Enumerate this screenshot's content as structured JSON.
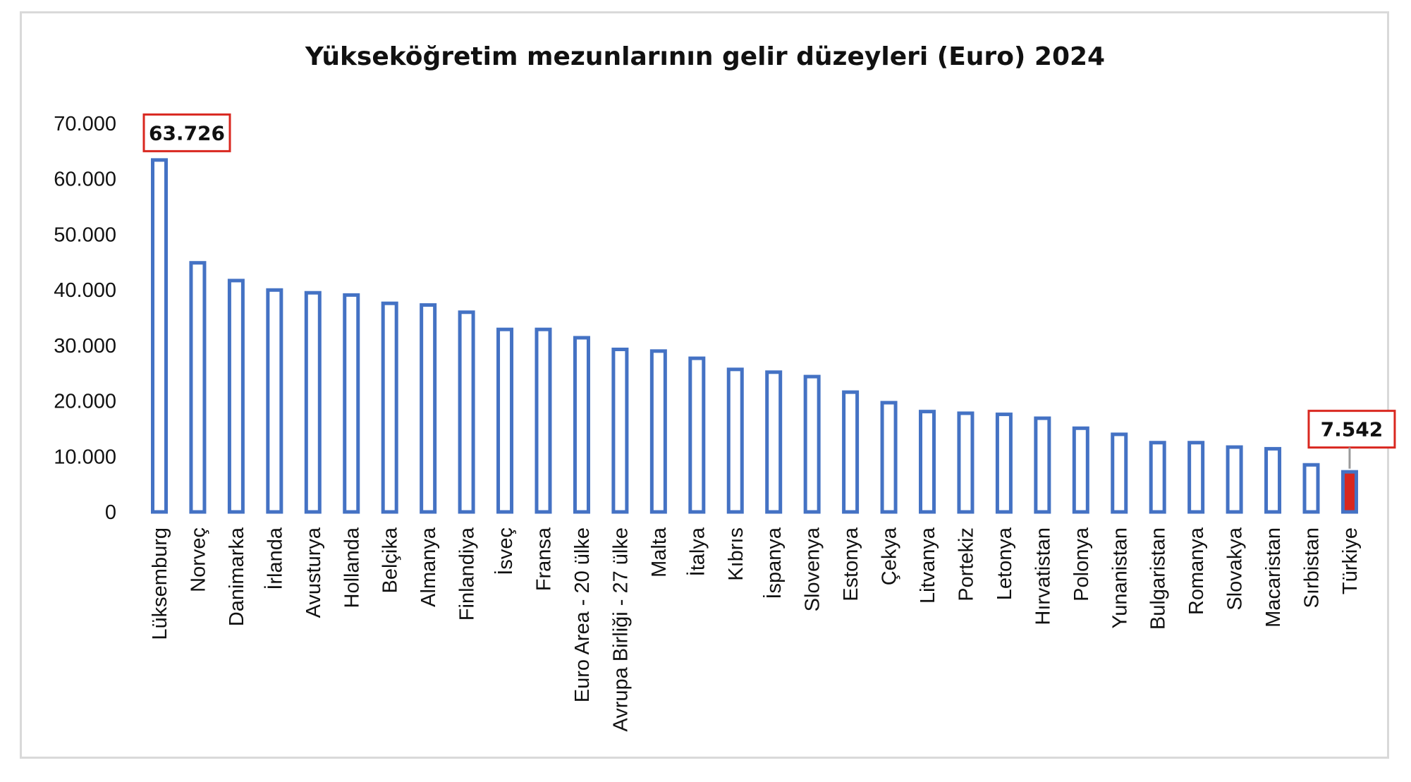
{
  "chart_data": {
    "type": "bar",
    "title": "Yükseköğretim mezunlarının gelir düzeyleri (Euro) 2024",
    "xlabel": "",
    "ylabel": "",
    "ylim": [
      0,
      70000
    ],
    "yticks": [
      0,
      10000,
      20000,
      30000,
      40000,
      50000,
      60000,
      70000
    ],
    "ytick_labels": [
      "0",
      "10.000",
      "20.000",
      "30.000",
      "40.000",
      "50.000",
      "60.000",
      "70.000"
    ],
    "grid": false,
    "legend": "none",
    "categories": [
      "Lüksemburg",
      "Norveç",
      "Danimarka",
      "İrlanda",
      "Avusturya",
      "Hollanda",
      "Belçika",
      "Almanya",
      "Finlandiya",
      "İsveç",
      "Fransa",
      "Euro Area - 20 ülke",
      "Avrupa Birliği - 27 ülke",
      "Malta",
      "İtalya",
      "Kıbrıs",
      "İspanya",
      "Slovenya",
      "Estonya",
      "Çekya",
      "Litvanya",
      "Portekiz",
      "Letonya",
      "Hırvatistan",
      "Polonya",
      "Yunanistan",
      "Bulgaristan",
      "Romanya",
      "Slovakya",
      "Macaristan",
      "Sırbistan",
      "Türkiye"
    ],
    "values": [
      63726,
      45200,
      42000,
      40300,
      39800,
      39400,
      37900,
      37600,
      36300,
      33200,
      33200,
      31700,
      29600,
      29300,
      28000,
      26000,
      25500,
      24700,
      21900,
      20000,
      18400,
      18100,
      17900,
      17200,
      15400,
      14300,
      12800,
      12800,
      12000,
      11700,
      8800,
      7542
    ],
    "colors": {
      "bar_outline": "#4472c4",
      "highlight_fill": "#d9271f",
      "callout_border": "#d9271f"
    },
    "annotations": [
      {
        "category": "Lüksemburg",
        "label": "63.726"
      },
      {
        "category": "Türkiye",
        "label": "7.542"
      }
    ],
    "highlight_category": "Türkiye"
  }
}
